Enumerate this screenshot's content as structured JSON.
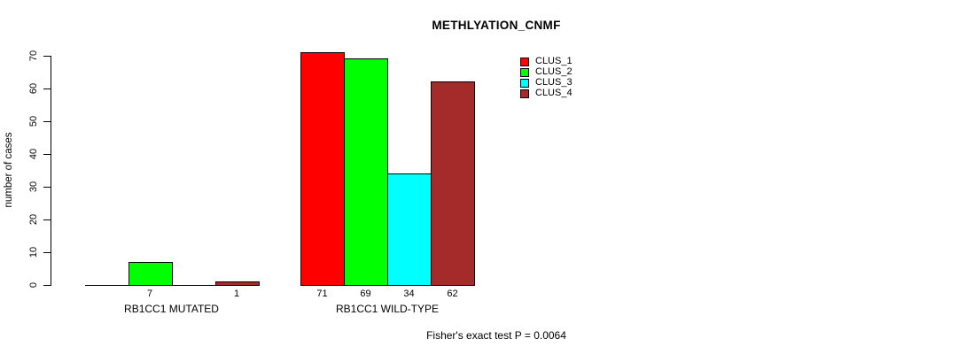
{
  "title": "METHLYATION_CNMF",
  "y_axis": {
    "label": "number of cases",
    "ticks": [
      0,
      10,
      20,
      30,
      40,
      50,
      60,
      70
    ]
  },
  "legend": {
    "items": [
      {
        "label": "CLUS_1",
        "color": "#FF0000"
      },
      {
        "label": "CLUS_2",
        "color": "#00FF00"
      },
      {
        "label": "CLUS_3",
        "color": "#00FFFF"
      },
      {
        "label": "CLUS_4",
        "color": "#A52A2A"
      }
    ]
  },
  "annotation": "Fisher's exact test P = 0.0064",
  "chart_data": {
    "type": "bar",
    "title": "METHLYATION_CNMF",
    "xlabel": "",
    "ylabel": "number of cases",
    "ylim": [
      0,
      70
    ],
    "grid": false,
    "legend_position": "top-right",
    "categories": [
      "RB1CC1 MUTATED",
      "RB1CC1 WILD-TYPE"
    ],
    "series": [
      {
        "name": "CLUS_1",
        "color": "#FF0000",
        "values": [
          0,
          71
        ]
      },
      {
        "name": "CLUS_2",
        "color": "#00FF00",
        "values": [
          7,
          69
        ]
      },
      {
        "name": "CLUS_3",
        "color": "#00FFFF",
        "values": [
          0,
          34
        ]
      },
      {
        "name": "CLUS_4",
        "color": "#A52A2A",
        "values": [
          1,
          62
        ]
      }
    ],
    "bar_value_labels_visible": {
      "RB1CC1 MUTATED": [
        7,
        1
      ],
      "RB1CC1 WILD-TYPE": [
        71,
        69,
        34,
        62
      ]
    },
    "annotation": "Fisher's exact test P = 0.0064"
  }
}
